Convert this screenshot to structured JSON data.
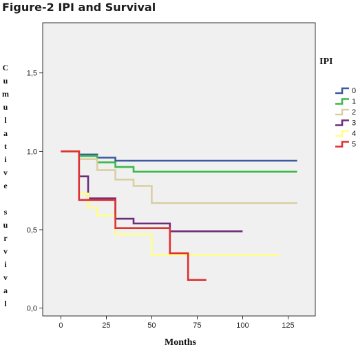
{
  "chart_data": {
    "type": "line",
    "step": true,
    "title": "Figure-2 IPI and Survival",
    "xlabel": "Months",
    "ylabel": "Cumulative survival",
    "xlim": [
      -10,
      140
    ],
    "ylim": [
      -0.05,
      1.82
    ],
    "xticks": [
      0,
      25,
      50,
      75,
      100,
      125
    ],
    "xtick_labels": [
      "0",
      "25",
      "50",
      "75",
      "100",
      "125"
    ],
    "yticks": [
      0.0,
      0.5,
      1.0,
      1.5
    ],
    "ytick_labels": [
      "0,0",
      "0,5",
      "1,0",
      "1,5"
    ],
    "grid": false,
    "legend_title": "IPI",
    "legend_position": "right",
    "series": [
      {
        "name": "0",
        "color": "#3c5aa0",
        "points": [
          [
            0,
            1.0
          ],
          [
            10,
            1.0
          ],
          [
            10,
            0.98
          ],
          [
            20,
            0.98
          ],
          [
            20,
            0.96
          ],
          [
            30,
            0.96
          ],
          [
            30,
            0.94
          ],
          [
            130,
            0.94
          ]
        ]
      },
      {
        "name": "1",
        "color": "#3cb84a",
        "points": [
          [
            0,
            1.0
          ],
          [
            10,
            1.0
          ],
          [
            10,
            0.97
          ],
          [
            20,
            0.97
          ],
          [
            20,
            0.93
          ],
          [
            30,
            0.93
          ],
          [
            30,
            0.9
          ],
          [
            40,
            0.9
          ],
          [
            40,
            0.87
          ],
          [
            130,
            0.87
          ]
        ]
      },
      {
        "name": "2",
        "color": "#d9cfa2",
        "points": [
          [
            0,
            1.0
          ],
          [
            10,
            1.0
          ],
          [
            10,
            0.95
          ],
          [
            20,
            0.95
          ],
          [
            20,
            0.88
          ],
          [
            30,
            0.88
          ],
          [
            30,
            0.82
          ],
          [
            40,
            0.82
          ],
          [
            40,
            0.78
          ],
          [
            50,
            0.78
          ],
          [
            50,
            0.67
          ],
          [
            130,
            0.67
          ]
        ]
      },
      {
        "name": "3",
        "color": "#6b2e7a",
        "points": [
          [
            0,
            1.0
          ],
          [
            10,
            1.0
          ],
          [
            10,
            0.84
          ],
          [
            15,
            0.84
          ],
          [
            15,
            0.7
          ],
          [
            30,
            0.7
          ],
          [
            30,
            0.57
          ],
          [
            40,
            0.57
          ],
          [
            40,
            0.54
          ],
          [
            60,
            0.54
          ],
          [
            60,
            0.49
          ],
          [
            100,
            0.49
          ]
        ]
      },
      {
        "name": "4",
        "color": "#ffff88",
        "points": [
          [
            0,
            1.0
          ],
          [
            10,
            1.0
          ],
          [
            10,
            0.73
          ],
          [
            15,
            0.73
          ],
          [
            15,
            0.64
          ],
          [
            20,
            0.64
          ],
          [
            20,
            0.59
          ],
          [
            30,
            0.59
          ],
          [
            30,
            0.47
          ],
          [
            50,
            0.47
          ],
          [
            50,
            0.34
          ],
          [
            120,
            0.34
          ]
        ]
      },
      {
        "name": "5",
        "color": "#e0302f",
        "points": [
          [
            0,
            1.0
          ],
          [
            10,
            1.0
          ],
          [
            10,
            0.69
          ],
          [
            30,
            0.69
          ],
          [
            30,
            0.51
          ],
          [
            60,
            0.51
          ],
          [
            60,
            0.35
          ],
          [
            70,
            0.35
          ],
          [
            70,
            0.18
          ],
          [
            80,
            0.18
          ]
        ]
      }
    ]
  }
}
